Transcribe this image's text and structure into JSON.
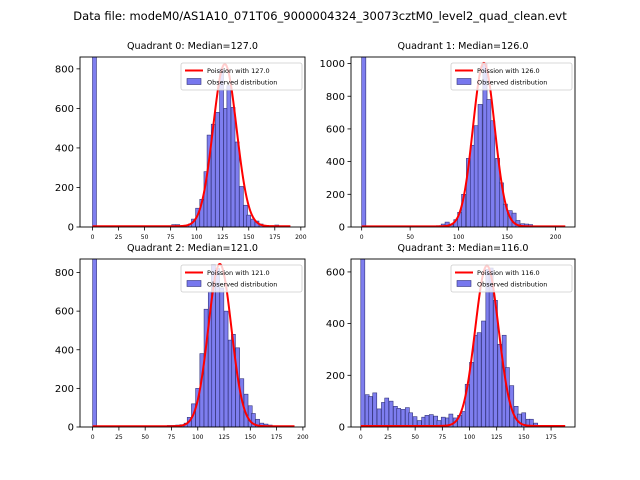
{
  "figure": {
    "suptitle": "Data file: modeM0/AS1A10_071T06_9000004324_30073cztM0_level2_quad_clean.evt"
  },
  "colors": {
    "bar_fill": "#7777ee",
    "bar_edge": "#33337a",
    "poisson_line": "#ff0000"
  },
  "chart_data": [
    {
      "type": "bar",
      "title": "Quadrant 0: Median=127.0",
      "legend": {
        "entries": [
          "Poission with 127.0",
          "Observed distribution"
        ],
        "placement": "top-right"
      },
      "xlim": [
        -12,
        204
      ],
      "ylim": [
        0,
        860
      ],
      "xticks": [
        0,
        25,
        50,
        75,
        100,
        125,
        150,
        175,
        200
      ],
      "yticks": [
        0,
        200,
        400,
        600,
        800
      ],
      "bin_width": 3.8,
      "bins_start": [
        0,
        76,
        80,
        84,
        88,
        92,
        95,
        99,
        103,
        107,
        110,
        114,
        118,
        122,
        126,
        129,
        133,
        137,
        141,
        145,
        148,
        152,
        156,
        160,
        164,
        167,
        175,
        179
      ],
      "counts": [
        1000,
        12,
        12,
        5,
        8,
        15,
        40,
        95,
        140,
        280,
        465,
        520,
        580,
        800,
        600,
        715,
        605,
        430,
        205,
        110,
        60,
        40,
        30,
        15,
        8,
        5,
        10,
        3
      ],
      "poisson_mean": 127.0,
      "poisson_peak": 820,
      "poisson_range": [
        0,
        190
      ]
    },
    {
      "type": "bar",
      "title": "Quadrant 1: Median=126.0",
      "legend": {
        "entries": [
          "Poission with 126.0",
          "Observed distribution"
        ],
        "placement": "top-right"
      },
      "xlim": [
        -11,
        220
      ],
      "ylim": [
        0,
        1040
      ],
      "xticks": [
        0,
        50,
        100,
        150,
        200
      ],
      "yticks": [
        0,
        200,
        400,
        600,
        800,
        1000
      ],
      "bin_width": 4.3,
      "bins_start": [
        0,
        73,
        77,
        82,
        86,
        90,
        95,
        99,
        103,
        108,
        112,
        116,
        120,
        125,
        129,
        133,
        138,
        142,
        146,
        151,
        155,
        159,
        164,
        168,
        172
      ],
      "counts": [
        1200,
        5,
        8,
        18,
        30,
        18,
        45,
        90,
        200,
        420,
        500,
        620,
        750,
        1000,
        780,
        650,
        420,
        270,
        140,
        100,
        85,
        40,
        20,
        18,
        15
      ],
      "poisson_mean": 126.0,
      "poisson_peak": 1000,
      "poisson_range": [
        0,
        210
      ]
    },
    {
      "type": "bar",
      "title": "Quadrant 2: Median=121.0",
      "legend": {
        "entries": [
          "Poission with 121.0",
          "Observed distribution"
        ],
        "placement": "top-right"
      },
      "xlim": [
        -12,
        202
      ],
      "ylim": [
        0,
        870
      ],
      "xticks": [
        0,
        25,
        50,
        75,
        100,
        125,
        150,
        175,
        200
      ],
      "yticks": [
        0,
        200,
        400,
        600,
        800
      ],
      "bin_width": 3.8,
      "bins_start": [
        0,
        71,
        75,
        79,
        83,
        87,
        90,
        94,
        98,
        102,
        106,
        110,
        113,
        117,
        121,
        125,
        129,
        132,
        136,
        140,
        144,
        148,
        151,
        155,
        159,
        163,
        167,
        171
      ],
      "counts": [
        1000,
        8,
        8,
        10,
        12,
        20,
        50,
        120,
        200,
        380,
        610,
        700,
        840,
        820,
        720,
        600,
        450,
        480,
        410,
        250,
        170,
        110,
        70,
        40,
        20,
        15,
        10,
        5
      ],
      "poisson_mean": 121.0,
      "poisson_peak": 840,
      "poisson_range": [
        0,
        192
      ]
    },
    {
      "type": "bar",
      "title": "Quadrant 3: Median=116.0",
      "legend": {
        "entries": [
          "Poission with 116.0",
          "Observed distribution"
        ],
        "placement": "top-right"
      },
      "xlim": [
        -9,
        197
      ],
      "ylim": [
        0,
        650
      ],
      "xticks": [
        0,
        25,
        50,
        75,
        100,
        125,
        150,
        175
      ],
      "yticks": [
        0,
        200,
        400,
        600
      ],
      "bin_width": 3.7,
      "bins_start": [
        0,
        4,
        7,
        11,
        15,
        19,
        22,
        26,
        30,
        33,
        37,
        41,
        44,
        48,
        52,
        56,
        59,
        63,
        67,
        70,
        74,
        78,
        81,
        85,
        89,
        93,
        96,
        100,
        104,
        107,
        111,
        115,
        118,
        122,
        126,
        130,
        133,
        137,
        141,
        144,
        148,
        152,
        155,
        159,
        163,
        167,
        170,
        174
      ],
      "counts": [
        1000,
        125,
        118,
        132,
        70,
        95,
        112,
        100,
        80,
        72,
        68,
        75,
        55,
        40,
        25,
        38,
        45,
        48,
        42,
        25,
        38,
        35,
        50,
        35,
        45,
        60,
        165,
        250,
        355,
        365,
        410,
        610,
        615,
        490,
        320,
        355,
        230,
        160,
        80,
        50,
        55,
        30,
        30,
        15,
        5,
        5,
        3,
        2
      ],
      "poisson_mean": 116.0,
      "poisson_peak": 620,
      "poisson_range": [
        0,
        188
      ]
    }
  ]
}
